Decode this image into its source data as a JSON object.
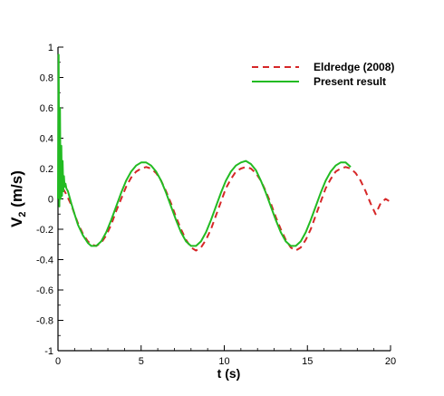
{
  "chart_data": {
    "type": "line",
    "title": "",
    "xlabel": "t (s)",
    "ylabel_main": "V",
    "ylabel_sub": "2",
    "ylabel_rest": " (m/s)",
    "xlim": [
      0,
      20
    ],
    "ylim": [
      -1,
      1
    ],
    "x_ticks": [
      0,
      5,
      10,
      15,
      20
    ],
    "x_tick_labels": [
      "0",
      "5",
      "10",
      "15",
      "20"
    ],
    "y_ticks": [
      -1,
      -0.8,
      -0.6,
      -0.4,
      -0.2,
      0,
      0.2,
      0.4,
      0.6,
      0.8,
      1
    ],
    "y_tick_labels": [
      "-1",
      "-0.8",
      "-0.6",
      "-0.4",
      "-0.2",
      "0",
      "0.2",
      "0.4",
      "0.6",
      "0.8",
      "1"
    ],
    "grid": false,
    "legend_position": "top-right",
    "series": [
      {
        "name": "Eldredge (2008)",
        "color": "#d62728",
        "style": "dashed",
        "x": [
          0.3,
          0.5,
          0.8,
          1.0,
          1.2,
          1.5,
          1.8,
          2.0,
          2.3,
          2.6,
          2.9,
          3.2,
          3.5,
          3.8,
          4.1,
          4.4,
          4.7,
          5.0,
          5.3,
          5.6,
          5.9,
          6.2,
          6.5,
          6.8,
          7.1,
          7.4,
          7.7,
          8.0,
          8.3,
          8.6,
          8.9,
          9.2,
          9.5,
          9.8,
          10.1,
          10.4,
          10.7,
          11.0,
          11.3,
          11.6,
          11.9,
          12.2,
          12.5,
          12.8,
          13.1,
          13.4,
          13.7,
          14.0,
          14.3,
          14.6,
          14.9,
          15.2,
          15.5,
          15.8,
          16.1,
          16.4,
          16.7,
          17.0,
          17.3,
          17.6,
          17.9,
          18.2,
          18.5,
          18.8,
          19.1,
          19.4,
          19.7,
          20.0
        ],
        "y": [
          0.07,
          0.03,
          -0.04,
          -0.1,
          -0.16,
          -0.23,
          -0.28,
          -0.3,
          -0.31,
          -0.29,
          -0.24,
          -0.17,
          -0.08,
          0.0,
          0.08,
          0.14,
          0.18,
          0.2,
          0.21,
          0.2,
          0.17,
          0.12,
          0.05,
          -0.03,
          -0.12,
          -0.2,
          -0.27,
          -0.32,
          -0.34,
          -0.32,
          -0.27,
          -0.2,
          -0.11,
          -0.02,
          0.07,
          0.13,
          0.18,
          0.2,
          0.21,
          0.2,
          0.17,
          0.12,
          0.05,
          -0.03,
          -0.12,
          -0.2,
          -0.27,
          -0.32,
          -0.34,
          -0.32,
          -0.27,
          -0.2,
          -0.11,
          -0.02,
          0.07,
          0.13,
          0.18,
          0.2,
          0.21,
          0.2,
          0.17,
          0.12,
          0.05,
          -0.03,
          -0.1,
          -0.03,
          0.0,
          -0.02
        ]
      },
      {
        "name": "Present result",
        "color": "#22bb22",
        "style": "solid",
        "x": [
          0.0,
          0.04,
          0.08,
          0.12,
          0.16,
          0.2,
          0.24,
          0.28,
          0.32,
          0.36,
          0.4,
          0.45,
          0.5,
          0.6,
          0.8,
          1.0,
          1.2,
          1.5,
          1.8,
          2.0,
          2.3,
          2.6,
          2.9,
          3.2,
          3.5,
          3.8,
          4.1,
          4.4,
          4.7,
          5.0,
          5.3,
          5.6,
          5.9,
          6.2,
          6.5,
          6.8,
          7.1,
          7.4,
          7.7,
          8.0,
          8.3,
          8.6,
          8.9,
          9.2,
          9.5,
          9.8,
          10.1,
          10.4,
          10.7,
          11.0,
          11.3,
          11.6,
          11.9,
          12.2,
          12.5,
          12.8,
          13.1,
          13.4,
          13.7,
          14.0,
          14.3,
          14.6,
          14.9,
          15.2,
          15.5,
          15.8,
          16.1,
          16.4,
          16.7,
          17.0,
          17.3,
          17.6
        ],
        "y": [
          0.0,
          0.95,
          -0.05,
          0.6,
          0.0,
          0.35,
          0.02,
          0.25,
          0.05,
          0.15,
          0.08,
          0.1,
          0.07,
          0.05,
          -0.03,
          -0.1,
          -0.17,
          -0.24,
          -0.29,
          -0.31,
          -0.31,
          -0.28,
          -0.22,
          -0.14,
          -0.05,
          0.04,
          0.12,
          0.18,
          0.22,
          0.24,
          0.24,
          0.22,
          0.18,
          0.12,
          0.04,
          -0.05,
          -0.14,
          -0.22,
          -0.28,
          -0.31,
          -0.31,
          -0.28,
          -0.22,
          -0.14,
          -0.05,
          0.04,
          0.12,
          0.18,
          0.22,
          0.24,
          0.25,
          0.23,
          0.19,
          0.12,
          0.04,
          -0.05,
          -0.14,
          -0.22,
          -0.28,
          -0.31,
          -0.31,
          -0.28,
          -0.22,
          -0.14,
          -0.05,
          0.04,
          0.12,
          0.18,
          0.22,
          0.24,
          0.24,
          0.21
        ]
      }
    ]
  }
}
